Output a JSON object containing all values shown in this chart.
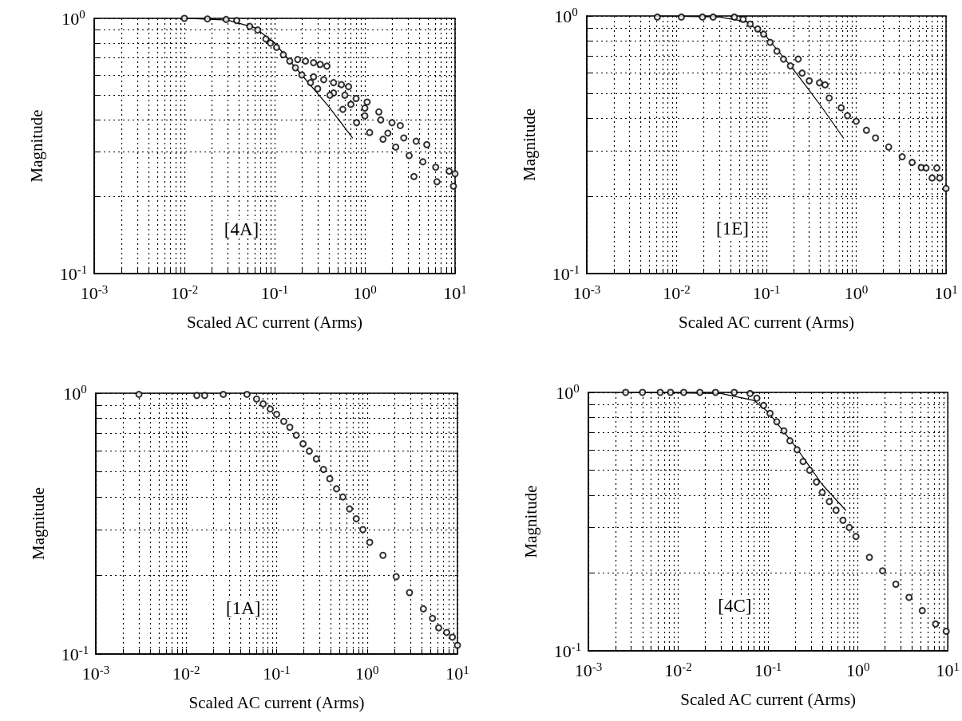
{
  "chart_data": [
    {
      "type": "scatter",
      "xlabel": "Scaled AC current (Arms)",
      "ylabel": "Magnitude",
      "annotations": [
        "[4A]"
      ],
      "log": "xy",
      "grid": true,
      "marker": "circle",
      "xlim": [
        0.001,
        10
      ],
      "ylim": [
        0.1,
        1
      ],
      "xticks": [
        {
          "value": 0.001,
          "label": "10$^{-3}$"
        },
        {
          "value": 0.002,
          "label": null
        },
        {
          "value": 0.003,
          "label": null
        },
        {
          "value": 0.004,
          "label": null
        },
        {
          "value": 0.005,
          "label": null
        },
        {
          "value": 0.006,
          "label": null
        },
        {
          "value": 0.007,
          "label": null
        },
        {
          "value": 0.008,
          "label": null
        },
        {
          "value": 0.009,
          "label": null
        },
        {
          "value": 0.01,
          "label": "10$^{-2}$"
        },
        {
          "value": 0.02,
          "label": null
        },
        {
          "value": 0.03,
          "label": null
        },
        {
          "value": 0.04,
          "label": null
        },
        {
          "value": 0.05,
          "label": null
        },
        {
          "value": 0.06,
          "label": null
        },
        {
          "value": 0.07,
          "label": null
        },
        {
          "value": 0.08,
          "label": null
        },
        {
          "value": 0.09,
          "label": null
        },
        {
          "value": 0.1,
          "label": "10$^{-1}$"
        },
        {
          "value": 0.2,
          "label": null
        },
        {
          "value": 0.3,
          "label": null
        },
        {
          "value": 0.4,
          "label": null
        },
        {
          "value": 0.5,
          "label": null
        },
        {
          "value": 0.6,
          "label": null
        },
        {
          "value": 0.7,
          "label": null
        },
        {
          "value": 0.8,
          "label": null
        },
        {
          "value": 0.9,
          "label": null
        },
        {
          "value": 1,
          "label": "10$^{0}$"
        },
        {
          "value": 2,
          "label": null
        },
        {
          "value": 3,
          "label": null
        },
        {
          "value": 4,
          "label": null
        },
        {
          "value": 5,
          "label": null
        },
        {
          "value": 6,
          "label": null
        },
        {
          "value": 7,
          "label": null
        },
        {
          "value": 8,
          "label": null
        },
        {
          "value": 9,
          "label": null
        },
        {
          "value": 10,
          "label": "10$^{1}$"
        }
      ],
      "yticks": [
        {
          "value": 0.1,
          "label": "10$^{-1}$"
        },
        {
          "value": 0.2,
          "label": null
        },
        {
          "value": 0.3,
          "label": null
        },
        {
          "value": 0.4,
          "label": null
        },
        {
          "value": 0.5,
          "label": null
        },
        {
          "value": 0.6,
          "label": null
        },
        {
          "value": 0.7,
          "label": null
        },
        {
          "value": 0.8,
          "label": null
        },
        {
          "value": 0.9,
          "label": null
        },
        {
          "value": 1,
          "label": "10$^{0}$"
        }
      ],
      "series": [
        {
          "type": "scatter",
          "color": "#000000",
          "x": [
            0.01,
            0.018,
            0.029,
            0.038,
            0.053,
            0.065,
            0.08,
            0.09,
            0.105,
            0.125,
            0.147,
            0.17,
            0.2,
            0.25,
            0.3,
            0.18,
            0.22,
            0.27,
            0.32,
            0.38,
            0.27,
            0.35,
            0.45,
            0.55,
            0.66,
            0.45,
            0.6,
            0.8,
            1.06,
            0.7,
            1.0,
            1.43,
            1.0,
            1.5,
            2.0,
            2.47,
            1.8,
            2.7,
            3.7,
            4.86,
            0.41,
            0.57,
            0.81,
            1.13,
            1.59,
            2.2,
            3.1,
            4.4,
            6.1,
            8.6,
            10,
            3.5,
            6.3,
            9.6
          ],
          "values": [
            1.0,
            0.995,
            0.99,
            0.98,
            0.93,
            0.9,
            0.83,
            0.8,
            0.77,
            0.72,
            0.68,
            0.64,
            0.6,
            0.56,
            0.53,
            0.69,
            0.68,
            0.67,
            0.66,
            0.65,
            0.59,
            0.575,
            0.56,
            0.55,
            0.54,
            0.51,
            0.5,
            0.485,
            0.47,
            0.46,
            0.445,
            0.43,
            0.415,
            0.4,
            0.39,
            0.38,
            0.355,
            0.34,
            0.33,
            0.32,
            0.5,
            0.44,
            0.39,
            0.357,
            0.336,
            0.313,
            0.29,
            0.274,
            0.261,
            0.252,
            0.246,
            0.24,
            0.229,
            0.22
          ]
        },
        {
          "type": "line",
          "color": "#000000",
          "marker": "none",
          "line_style": "solid",
          "x": [
            0.01,
            0.03,
            0.06,
            0.1,
            0.2,
            0.4,
            0.73
          ],
          "values": [
            1.0,
            0.985,
            0.92,
            0.8,
            0.6,
            0.45,
            0.34
          ]
        }
      ]
    },
    {
      "type": "scatter",
      "xlabel": "Scaled AC current (Arms)",
      "ylabel": "Magnitude",
      "annotations": [
        "[1E]"
      ],
      "log": "xy",
      "grid": true,
      "marker": "circle",
      "xlim": [
        0.001,
        10
      ],
      "ylim": [
        0.1,
        1
      ],
      "xticks": [
        {
          "value": 0.001,
          "label": "10$^{-3}$"
        },
        {
          "value": 0.002,
          "label": null
        },
        {
          "value": 0.003,
          "label": null
        },
        {
          "value": 0.004,
          "label": null
        },
        {
          "value": 0.005,
          "label": null
        },
        {
          "value": 0.006,
          "label": null
        },
        {
          "value": 0.007,
          "label": null
        },
        {
          "value": 0.008,
          "label": null
        },
        {
          "value": 0.009,
          "label": null
        },
        {
          "value": 0.01,
          "label": "10$^{-2}$"
        },
        {
          "value": 0.02,
          "label": null
        },
        {
          "value": 0.03,
          "label": null
        },
        {
          "value": 0.04,
          "label": null
        },
        {
          "value": 0.05,
          "label": null
        },
        {
          "value": 0.06,
          "label": null
        },
        {
          "value": 0.07,
          "label": null
        },
        {
          "value": 0.08,
          "label": null
        },
        {
          "value": 0.09,
          "label": null
        },
        {
          "value": 0.1,
          "label": "10$^{-1}$"
        },
        {
          "value": 0.2,
          "label": null
        },
        {
          "value": 0.3,
          "label": null
        },
        {
          "value": 0.4,
          "label": null
        },
        {
          "value": 0.5,
          "label": null
        },
        {
          "value": 0.6,
          "label": null
        },
        {
          "value": 0.7,
          "label": null
        },
        {
          "value": 0.8,
          "label": null
        },
        {
          "value": 0.9,
          "label": null
        },
        {
          "value": 1,
          "label": "10$^{0}$"
        },
        {
          "value": 2,
          "label": null
        },
        {
          "value": 3,
          "label": null
        },
        {
          "value": 4,
          "label": null
        },
        {
          "value": 5,
          "label": null
        },
        {
          "value": 6,
          "label": null
        },
        {
          "value": 7,
          "label": null
        },
        {
          "value": 8,
          "label": null
        },
        {
          "value": 9,
          "label": null
        },
        {
          "value": 10,
          "label": "10$^{1}$"
        }
      ],
      "yticks": [
        {
          "value": 0.1,
          "label": "10$^{-1}$"
        },
        {
          "value": 0.2,
          "label": null
        },
        {
          "value": 0.3,
          "label": null
        },
        {
          "value": 0.4,
          "label": null
        },
        {
          "value": 0.5,
          "label": null
        },
        {
          "value": 0.6,
          "label": null
        },
        {
          "value": 0.7,
          "label": null
        },
        {
          "value": 0.8,
          "label": null
        },
        {
          "value": 0.9,
          "label": null
        },
        {
          "value": 1,
          "label": "10$^{0}$"
        }
      ],
      "series": [
        {
          "type": "scatter",
          "color": "#000000",
          "x": [
            0.0061,
            0.0113,
            0.0194,
            0.0255,
            0.044,
            0.055,
            0.066,
            0.08,
            0.093,
            0.11,
            0.131,
            0.155,
            0.185,
            0.226,
            0.25,
            0.3,
            0.39,
            0.45,
            0.5,
            0.68,
            0.8,
            1.0,
            1.3,
            1.64,
            2.3,
            3.25,
            4.2,
            5.3,
            6.0,
            7.0,
            7.9,
            8.5,
            10
          ],
          "values": [
            0.99,
            0.99,
            0.99,
            0.99,
            0.99,
            0.97,
            0.93,
            0.89,
            0.85,
            0.79,
            0.73,
            0.68,
            0.64,
            0.68,
            0.6,
            0.56,
            0.55,
            0.54,
            0.48,
            0.44,
            0.41,
            0.39,
            0.36,
            0.336,
            0.31,
            0.284,
            0.27,
            0.258,
            0.257,
            0.235,
            0.257,
            0.235,
            0.214
          ]
        },
        {
          "type": "line",
          "color": "#000000",
          "marker": "none",
          "line_style": "solid",
          "x": [
            0.006,
            0.03,
            0.06,
            0.1,
            0.2,
            0.4,
            0.72
          ],
          "values": [
            1.0,
            0.99,
            0.95,
            0.83,
            0.62,
            0.45,
            0.336
          ]
        }
      ]
    },
    {
      "type": "scatter",
      "xlabel": "Scaled AC current (Arms)",
      "ylabel": "Magnitude",
      "annotations": [
        "[1A]"
      ],
      "log": "xy",
      "grid": true,
      "marker": "circle",
      "xlim": [
        0.001,
        10
      ],
      "ylim": [
        0.1,
        1
      ],
      "xticks": [
        {
          "value": 0.001,
          "label": "10$^{-3}$"
        },
        {
          "value": 0.002,
          "label": null
        },
        {
          "value": 0.003,
          "label": null
        },
        {
          "value": 0.004,
          "label": null
        },
        {
          "value": 0.005,
          "label": null
        },
        {
          "value": 0.006,
          "label": null
        },
        {
          "value": 0.007,
          "label": null
        },
        {
          "value": 0.008,
          "label": null
        },
        {
          "value": 0.009,
          "label": null
        },
        {
          "value": 0.01,
          "label": "10$^{-2}$"
        },
        {
          "value": 0.02,
          "label": null
        },
        {
          "value": 0.03,
          "label": null
        },
        {
          "value": 0.04,
          "label": null
        },
        {
          "value": 0.05,
          "label": null
        },
        {
          "value": 0.06,
          "label": null
        },
        {
          "value": 0.07,
          "label": null
        },
        {
          "value": 0.08,
          "label": null
        },
        {
          "value": 0.09,
          "label": null
        },
        {
          "value": 0.1,
          "label": "10$^{-1}$"
        },
        {
          "value": 0.2,
          "label": null
        },
        {
          "value": 0.3,
          "label": null
        },
        {
          "value": 0.4,
          "label": null
        },
        {
          "value": 0.5,
          "label": null
        },
        {
          "value": 0.6,
          "label": null
        },
        {
          "value": 0.7,
          "label": null
        },
        {
          "value": 0.8,
          "label": null
        },
        {
          "value": 0.9,
          "label": null
        },
        {
          "value": 1,
          "label": "10$^{0}$"
        },
        {
          "value": 2,
          "label": null
        },
        {
          "value": 3,
          "label": null
        },
        {
          "value": 4,
          "label": null
        },
        {
          "value": 5,
          "label": null
        },
        {
          "value": 6,
          "label": null
        },
        {
          "value": 7,
          "label": null
        },
        {
          "value": 8,
          "label": null
        },
        {
          "value": 9,
          "label": null
        },
        {
          "value": 10,
          "label": "10$^{1}$"
        }
      ],
      "yticks": [
        {
          "value": 0.1,
          "label": "10$^{-1}$"
        },
        {
          "value": 0.2,
          "label": null
        },
        {
          "value": 0.3,
          "label": null
        },
        {
          "value": 0.4,
          "label": null
        },
        {
          "value": 0.5,
          "label": null
        },
        {
          "value": 0.6,
          "label": null
        },
        {
          "value": 0.7,
          "label": null
        },
        {
          "value": 0.8,
          "label": null
        },
        {
          "value": 0.9,
          "label": null
        },
        {
          "value": 1,
          "label": "10$^{0}$"
        }
      ],
      "series": [
        {
          "type": "scatter",
          "color": "#000000",
          "x": [
            0.003,
            0.0131,
            0.016,
            0.0257,
            0.047,
            0.06,
            0.071,
            0.085,
            0.1,
            0.12,
            0.14,
            0.165,
            0.196,
            0.23,
            0.275,
            0.33,
            0.387,
            0.46,
            0.54,
            0.64,
            0.76,
            0.9,
            1.07,
            1.5,
            2.1,
            2.95,
            4.2,
            5.3,
            6.2,
            7.6,
            8.8,
            10
          ],
          "values": [
            0.99,
            0.98,
            0.98,
            0.99,
            0.99,
            0.95,
            0.91,
            0.87,
            0.83,
            0.78,
            0.74,
            0.69,
            0.64,
            0.6,
            0.56,
            0.51,
            0.47,
            0.43,
            0.4,
            0.36,
            0.33,
            0.3,
            0.268,
            0.239,
            0.198,
            0.172,
            0.149,
            0.137,
            0.126,
            0.121,
            0.116,
            0.108
          ]
        }
      ]
    },
    {
      "type": "scatter",
      "xlabel": "Scaled AC current (Arms)",
      "ylabel": "Magnitude",
      "annotations": [
        "[4C]"
      ],
      "log": "xy",
      "grid": true,
      "marker": "circle",
      "xlim": [
        0.001,
        10
      ],
      "ylim": [
        0.1,
        1
      ],
      "xticks": [
        {
          "value": 0.001,
          "label": "10$^{-3}$"
        },
        {
          "value": 0.002,
          "label": null
        },
        {
          "value": 0.003,
          "label": null
        },
        {
          "value": 0.004,
          "label": null
        },
        {
          "value": 0.005,
          "label": null
        },
        {
          "value": 0.006,
          "label": null
        },
        {
          "value": 0.007,
          "label": null
        },
        {
          "value": 0.008,
          "label": null
        },
        {
          "value": 0.009,
          "label": null
        },
        {
          "value": 0.01,
          "label": "10$^{-2}$"
        },
        {
          "value": 0.02,
          "label": null
        },
        {
          "value": 0.03,
          "label": null
        },
        {
          "value": 0.04,
          "label": null
        },
        {
          "value": 0.05,
          "label": null
        },
        {
          "value": 0.06,
          "label": null
        },
        {
          "value": 0.07,
          "label": null
        },
        {
          "value": 0.08,
          "label": null
        },
        {
          "value": 0.09,
          "label": null
        },
        {
          "value": 0.1,
          "label": "10$^{-1}$"
        },
        {
          "value": 0.2,
          "label": null
        },
        {
          "value": 0.3,
          "label": null
        },
        {
          "value": 0.4,
          "label": null
        },
        {
          "value": 0.5,
          "label": null
        },
        {
          "value": 0.6,
          "label": null
        },
        {
          "value": 0.7,
          "label": null
        },
        {
          "value": 0.8,
          "label": null
        },
        {
          "value": 0.9,
          "label": null
        },
        {
          "value": 1,
          "label": "10$^{0}$"
        },
        {
          "value": 2,
          "label": null
        },
        {
          "value": 3,
          "label": null
        },
        {
          "value": 4,
          "label": null
        },
        {
          "value": 5,
          "label": null
        },
        {
          "value": 6,
          "label": null
        },
        {
          "value": 7,
          "label": null
        },
        {
          "value": 8,
          "label": null
        },
        {
          "value": 9,
          "label": null
        },
        {
          "value": 10,
          "label": "10$^{1}$"
        }
      ],
      "yticks": [
        {
          "value": 0.1,
          "label": "10$^{-1}$"
        },
        {
          "value": 0.2,
          "label": null
        },
        {
          "value": 0.3,
          "label": null
        },
        {
          "value": 0.4,
          "label": null
        },
        {
          "value": 0.5,
          "label": null
        },
        {
          "value": 0.6,
          "label": null
        },
        {
          "value": 0.7,
          "label": null
        },
        {
          "value": 0.8,
          "label": null
        },
        {
          "value": 0.9,
          "label": null
        },
        {
          "value": 1,
          "label": "10$^{0}$"
        }
      ],
      "series": [
        {
          "type": "scatter",
          "color": "#000000",
          "x": [
            0.0026,
            0.004,
            0.0063,
            0.0082,
            0.0115,
            0.0174,
            0.026,
            0.042,
            0.063,
            0.075,
            0.089,
            0.105,
            0.125,
            0.15,
            0.175,
            0.21,
            0.245,
            0.29,
            0.345,
            0.4,
            0.48,
            0.57,
            0.68,
            0.8,
            0.95,
            1.34,
            1.88,
            2.64,
            3.7,
            5.2,
            7.3,
            9.6
          ],
          "values": [
            1.0,
            1.0,
            1.0,
            1.0,
            1.0,
            1.0,
            1.0,
            1.0,
            0.99,
            0.95,
            0.89,
            0.83,
            0.77,
            0.71,
            0.65,
            0.6,
            0.54,
            0.5,
            0.45,
            0.41,
            0.378,
            0.35,
            0.32,
            0.3,
            0.277,
            0.23,
            0.204,
            0.181,
            0.161,
            0.143,
            0.127,
            0.119
          ]
        },
        {
          "type": "line",
          "color": "#000000",
          "marker": "none",
          "line_style": "solid",
          "x": [
            0.003,
            0.03,
            0.07,
            0.1,
            0.2,
            0.4,
            0.73
          ],
          "values": [
            1.0,
            0.99,
            0.93,
            0.84,
            0.62,
            0.44,
            0.35
          ]
        }
      ]
    }
  ]
}
